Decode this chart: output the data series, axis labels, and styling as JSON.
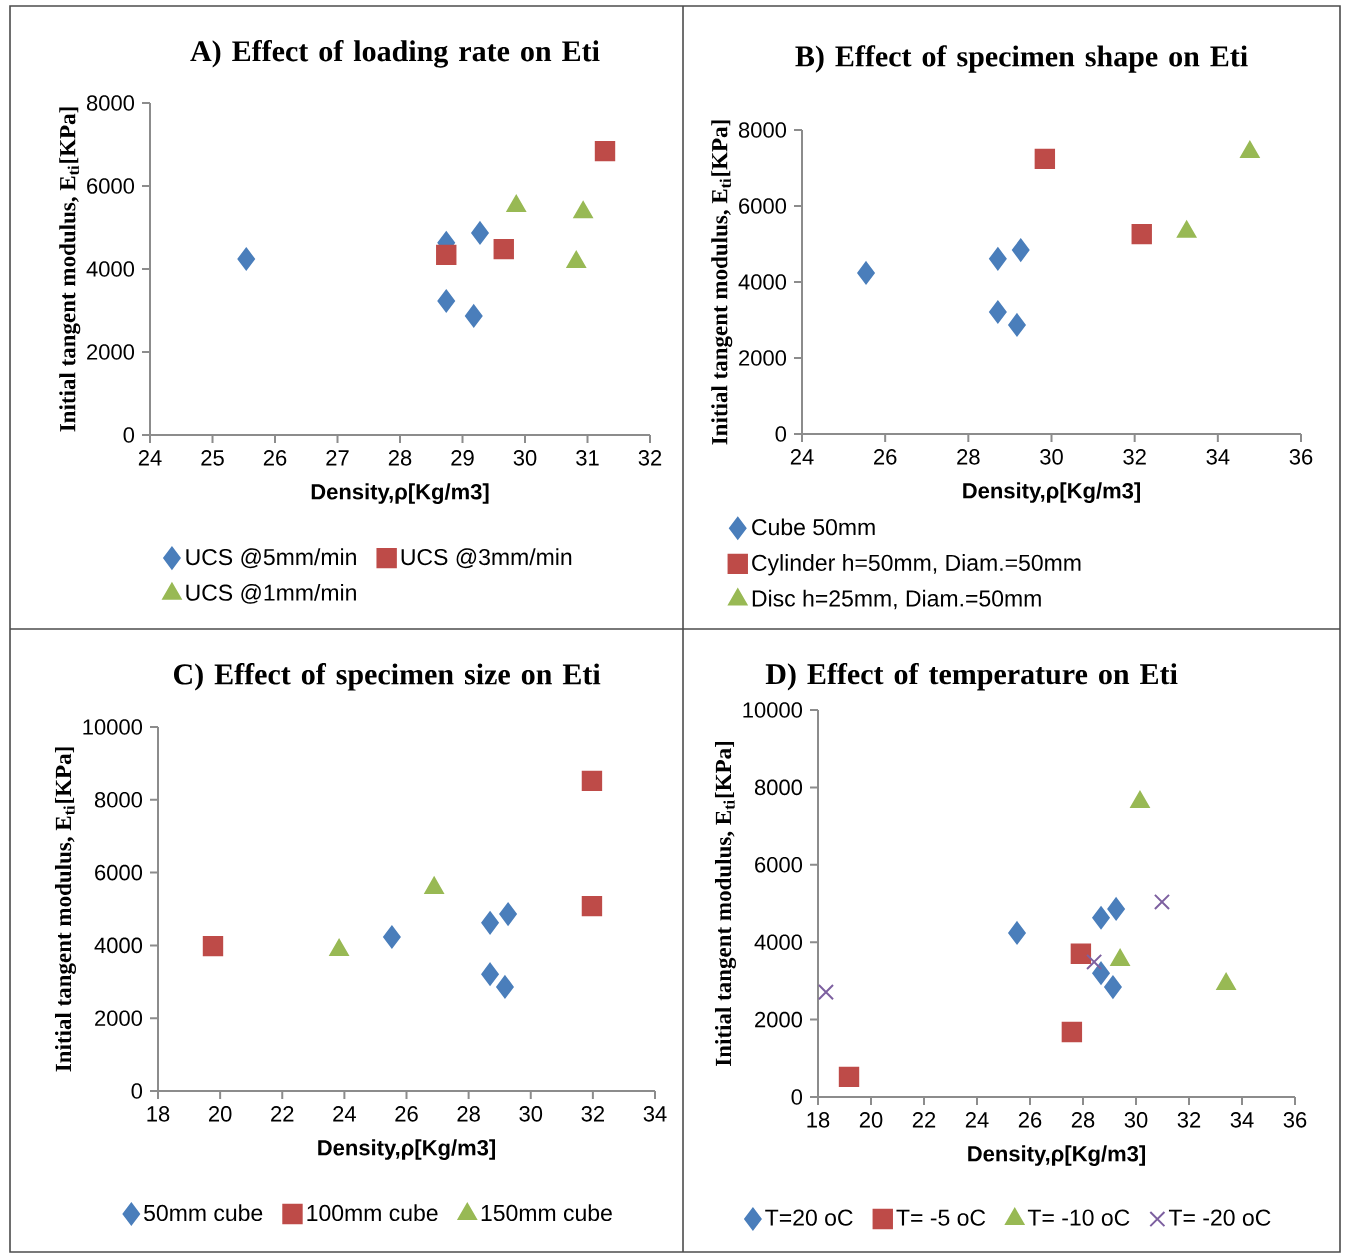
{
  "chart_data": [
    {
      "type": "scatter",
      "title": "A) Effect of loading rate on Eti",
      "xlabel": "Density,ρ[Kg/m3]",
      "ylabel": "Initial tangent modulus, E$_{ti}$[KPa]",
      "xlim": [
        24,
        32
      ],
      "xticks": [
        24,
        25,
        26,
        27,
        28,
        29,
        30,
        31,
        32
      ],
      "ylim": [
        0,
        8000
      ],
      "yticks": [
        0,
        2000,
        4000,
        6000,
        8000
      ],
      "legend": "bottom",
      "series": [
        {
          "name": "UCS @5mm/min",
          "color": "#4a7ebb",
          "marker": "diamond",
          "x": [
            25.54,
            28.74,
            29.28,
            28.74,
            29.18
          ],
          "values": [
            4240,
            4630,
            4870,
            3230,
            2870
          ]
        },
        {
          "name": "UCS @3mm/min",
          "color": "#be4b48",
          "marker": "square",
          "x": [
            28.74,
            29.66,
            31.28
          ],
          "values": [
            4340,
            4480,
            6840
          ]
        },
        {
          "name": "UCS @1mm/min",
          "color": "#98b954",
          "marker": "triangle",
          "x": [
            29.86,
            30.93,
            30.82
          ],
          "values": [
            5520,
            5370,
            4170
          ]
        }
      ]
    },
    {
      "type": "scatter",
      "title": "B) Effect of specimen shape on Eti",
      "xlabel": "Density,ρ[Kg/m3]",
      "ylabel": "Initial tangent modulus, E$_{ti}$[KPa]",
      "xlim": [
        24,
        36
      ],
      "xticks": [
        24,
        26,
        28,
        30,
        32,
        34,
        36
      ],
      "ylim": [
        0,
        8000
      ],
      "yticks": [
        0,
        2000,
        4000,
        6000,
        8000
      ],
      "legend": "bottom",
      "series": [
        {
          "name": "Cube 50mm",
          "color": "#4a7ebb",
          "marker": "diamond",
          "x": [
            25.54,
            28.71,
            29.26,
            28.71,
            29.17
          ],
          "values": [
            4240,
            4610,
            4840,
            3210,
            2870
          ]
        },
        {
          "name": "Cylinder h=50mm, Diam.=50mm",
          "color": "#be4b48",
          "marker": "square",
          "x": [
            29.84,
            32.17
          ],
          "values": [
            7240,
            5260
          ]
        },
        {
          "name": "Disc h=25mm, Diam.=50mm",
          "color": "#98b954",
          "marker": "triangle",
          "x": [
            33.25,
            34.77
          ],
          "values": [
            5320,
            7420
          ]
        }
      ]
    },
    {
      "type": "scatter",
      "title": "C) Effect of specimen size  on Eti",
      "xlabel": "Density,ρ[Kg/m3]",
      "ylabel": "Initial tangent modulus, E$_{ti}$[KPa]",
      "xlim": [
        18,
        34
      ],
      "xticks": [
        18,
        20,
        22,
        24,
        26,
        28,
        30,
        32,
        34
      ],
      "ylim": [
        0,
        10000
      ],
      "yticks": [
        0,
        2000,
        4000,
        6000,
        8000,
        10000
      ],
      "legend": "bottom",
      "series": [
        {
          "name": "50mm cube",
          "color": "#4a7ebb",
          "marker": "diamond",
          "x": [
            25.53,
            28.69,
            29.27,
            28.69,
            29.17
          ],
          "values": [
            4230,
            4620,
            4860,
            3210,
            2860
          ]
        },
        {
          "name": "100mm cube",
          "color": "#be4b48",
          "marker": "square",
          "x": [
            19.77,
            31.97,
            31.97
          ],
          "values": [
            3980,
            5080,
            8520
          ]
        },
        {
          "name": "150mm cube",
          "color": "#98b954",
          "marker": "triangle",
          "x": [
            23.83,
            26.89
          ],
          "values": [
            3870,
            5580
          ]
        }
      ]
    },
    {
      "type": "scatter",
      "title": "D) Effect of temperature on Eti",
      "xlabel": "Density,ρ[Kg/m3]",
      "ylabel": "Initial tangent modulus, E$_{ti}$[KPa]",
      "xlim": [
        18,
        36
      ],
      "xticks": [
        18,
        20,
        22,
        24,
        26,
        28,
        30,
        32,
        34,
        36
      ],
      "ylim": [
        0,
        10000
      ],
      "yticks": [
        0,
        2000,
        4000,
        6000,
        8000,
        10000
      ],
      "legend": "bottom",
      "series": [
        {
          "name": "T=20 oC",
          "color": "#4a7ebb",
          "marker": "diamond",
          "x": [
            25.51,
            28.68,
            29.25,
            28.68,
            29.13
          ],
          "values": [
            4240,
            4630,
            4860,
            3200,
            2840
          ]
        },
        {
          "name": "T= -5 oC",
          "color": "#be4b48",
          "marker": "square",
          "x": [
            19.17,
            27.58,
            27.92
          ],
          "values": [
            520,
            1680,
            3700
          ]
        },
        {
          "name": "T= -10 oC",
          "color": "#98b954",
          "marker": "triangle",
          "x": [
            30.15,
            29.4,
            33.4
          ],
          "values": [
            7620,
            3540,
            2920
          ]
        },
        {
          "name": "T= -20 oC",
          "color": "#7d60a0",
          "marker": "cross",
          "x": [
            18.3,
            28.42,
            30.98
          ],
          "values": [
            2710,
            3490,
            5040
          ]
        }
      ]
    }
  ]
}
